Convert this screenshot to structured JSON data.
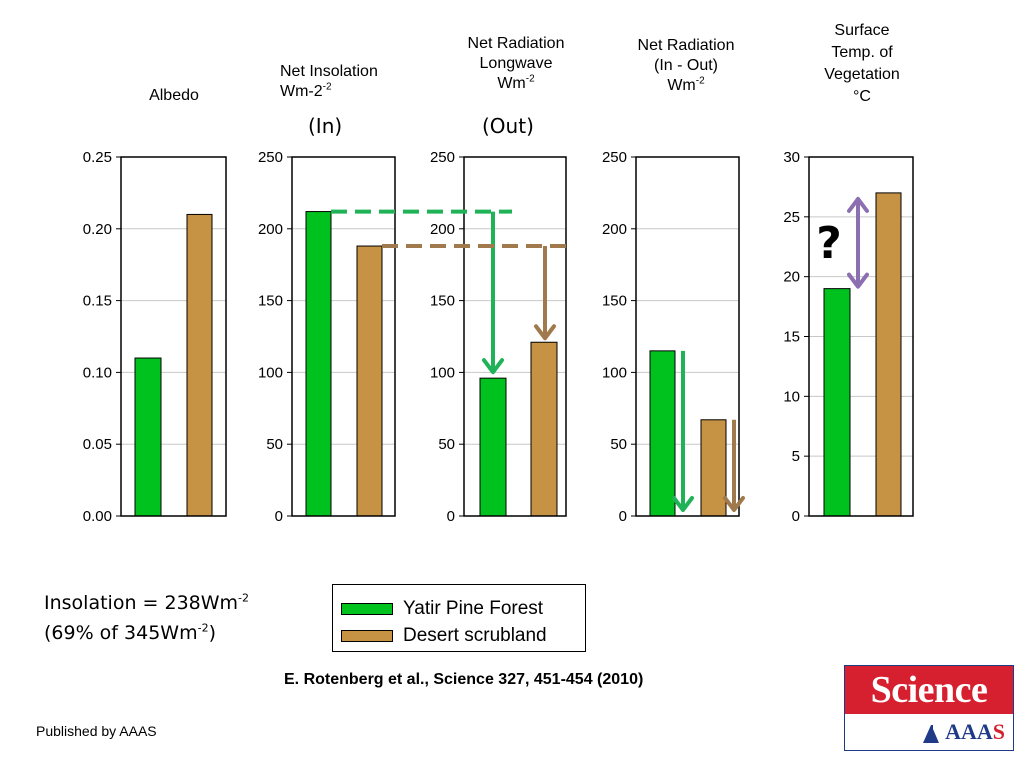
{
  "chart_data": [
    {
      "type": "bar",
      "title": "Albedo",
      "categories": [
        "Yatir Pine Forest",
        "Desert scrubland"
      ],
      "values": [
        0.11,
        0.21
      ],
      "ylim": [
        0,
        0.25
      ],
      "yticks": [
        "0.00",
        "0.05",
        "0.10",
        "0.15",
        "0.20",
        "0.25"
      ],
      "grid": true
    },
    {
      "type": "bar",
      "title_line1": "Net Insolation",
      "title_line2": "Wm-2",
      "title_sup": "-2",
      "sub_label": "(In)",
      "categories": [
        "Yatir Pine Forest",
        "Desert scrubland"
      ],
      "values": [
        212,
        188
      ],
      "ylim": [
        0,
        250
      ],
      "yticks": [
        "0",
        "50",
        "100",
        "150",
        "200",
        "250"
      ],
      "grid": true
    },
    {
      "type": "bar",
      "title_line1": "Net Radiation",
      "title_line2": "Longwave",
      "title_line3": "Wm",
      "title_sup": "-2",
      "sub_label": "(Out)",
      "categories": [
        "Yatir Pine Forest",
        "Desert scrubland"
      ],
      "values": [
        96,
        121
      ],
      "ylim": [
        0,
        250
      ],
      "yticks": [
        "0",
        "50",
        "100",
        "150",
        "200",
        "250"
      ],
      "grid": true
    },
    {
      "type": "bar",
      "title_line1": "Net Radiation",
      "title_line2": "(In - Out)",
      "title_line3": "Wm",
      "title_sup": "-2",
      "categories": [
        "Yatir Pine Forest",
        "Desert scrubland"
      ],
      "values": [
        115,
        67
      ],
      "ylim": [
        0,
        250
      ],
      "yticks": [
        "0",
        "50",
        "100",
        "150",
        "200",
        "250"
      ],
      "grid": true
    },
    {
      "type": "bar",
      "title_line1": "Surface",
      "title_line2": "Temp. of",
      "title_line3": "Vegetation",
      "title_line4": "°C",
      "annotation": "?",
      "categories": [
        "Yatir Pine Forest",
        "Desert scrubland"
      ],
      "values": [
        19,
        27
      ],
      "ylim": [
        0,
        30
      ],
      "yticks": [
        "0",
        "5",
        "10",
        "15",
        "20",
        "25",
        "30"
      ],
      "grid": true
    }
  ],
  "colors": {
    "forest": "#00c21e",
    "desert": "#c69244",
    "green_arrow": "#1fb257",
    "brown_arrow": "#a07a4c",
    "purple_arrow": "#8b6fb1",
    "grid": "#c8c8c8"
  },
  "legend": {
    "items": [
      "Yatir Pine Forest",
      "Desert scrubland"
    ]
  },
  "note": {
    "line1_text": "Insolation = 238Wm",
    "line1_sup": "-2",
    "line2_text_a": "(69% of 345Wm",
    "line2_sup": "-2",
    "line2_text_b": ")"
  },
  "citation": "E.  Rotenberg et al.,  Science  327, 451-454 (2010)",
  "footer": "Published by AAAS",
  "logo": {
    "top_text": "Science",
    "bottom_text_a": "AAA",
    "bottom_text_b": "S"
  }
}
